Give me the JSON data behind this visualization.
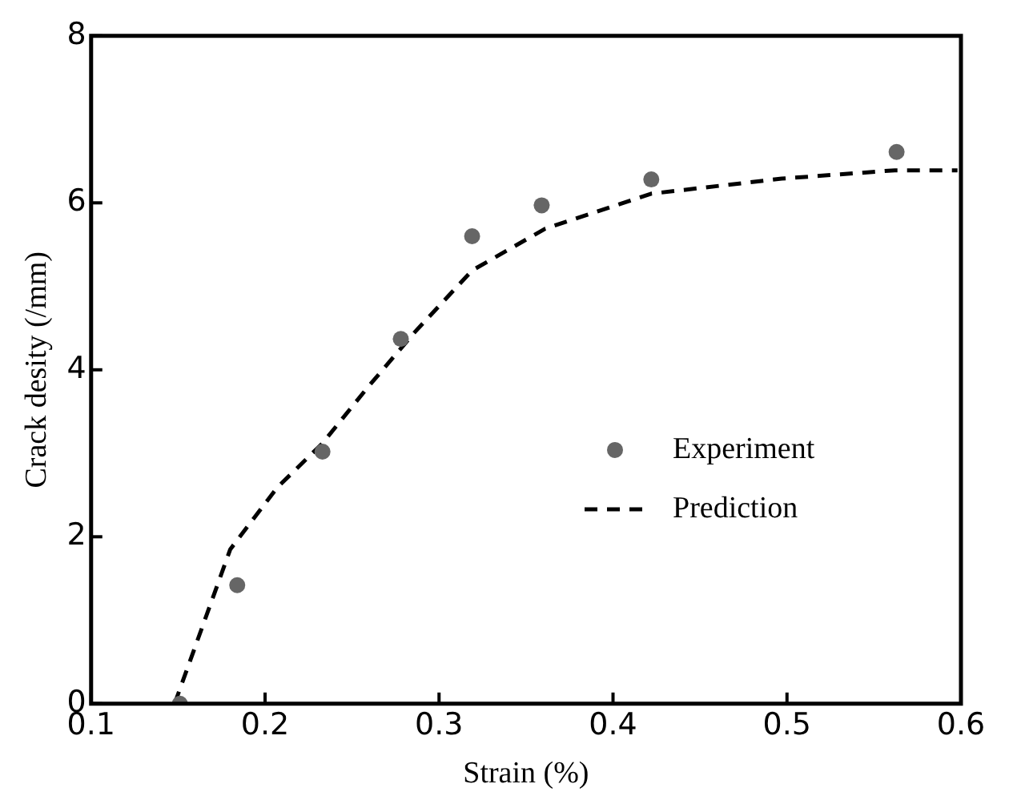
{
  "chart_data": {
    "type": "scatter",
    "xlabel": "Strain (%)",
    "ylabel": "Crack desity (/mm)",
    "xlim": [
      0.1,
      0.6
    ],
    "ylim": [
      0,
      8
    ],
    "xticks": [
      0.1,
      0.2,
      0.3,
      0.4,
      0.5,
      0.6
    ],
    "yticks": [
      0,
      2,
      4,
      6,
      8
    ],
    "legend": "right",
    "series": [
      {
        "name": "Experiment",
        "marker": "circle",
        "color": "#666666",
        "x": [
          0.151,
          0.184,
          0.233,
          0.278,
          0.319,
          0.359,
          0.422,
          0.563
        ],
        "values": [
          0,
          1.42,
          3.02,
          4.37,
          5.6,
          5.97,
          6.28,
          6.61
        ]
      },
      {
        "name": "Prediction",
        "type": "line",
        "line_style": "dashed",
        "marker": "none",
        "color": "#000000",
        "x": [
          0.148,
          0.18,
          0.207,
          0.233,
          0.259,
          0.286,
          0.319,
          0.361,
          0.422,
          0.497,
          0.562,
          0.598
        ],
        "values": [
          0,
          1.85,
          2.59,
          3.12,
          3.79,
          4.45,
          5.19,
          5.69,
          6.11,
          6.29,
          6.39,
          6.39
        ]
      }
    ]
  }
}
